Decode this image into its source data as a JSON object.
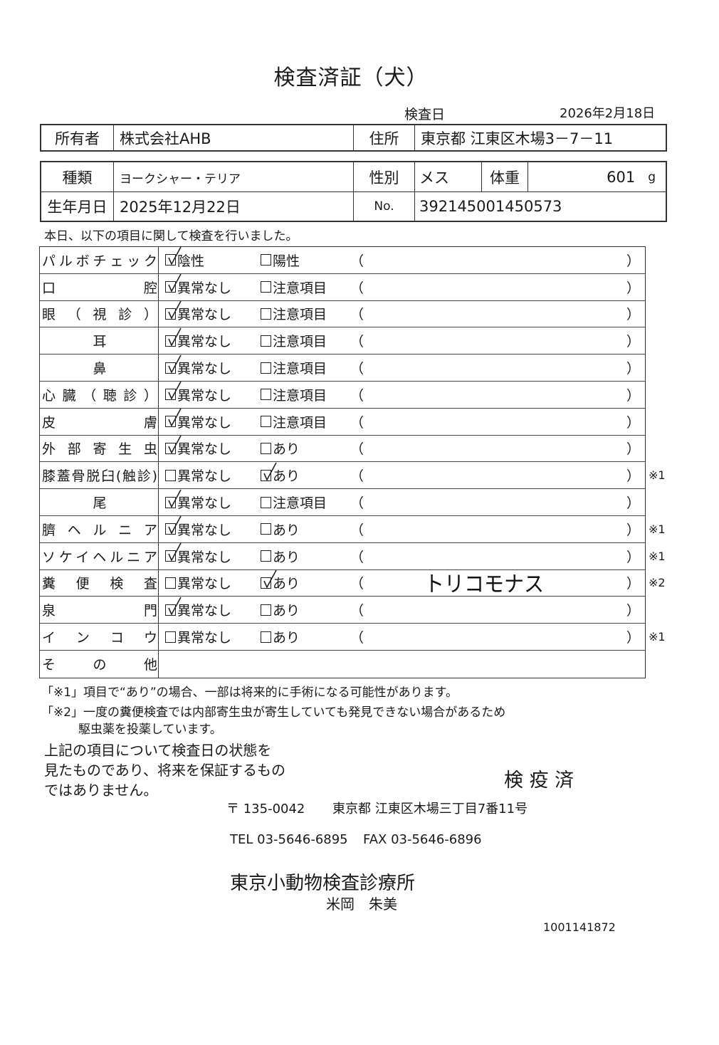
{
  "title": "検査済証（犬）",
  "exam_date_label": "検査日",
  "exam_date": "2026年2月18日",
  "owner": {
    "label": "所有者",
    "value": "株式会社AHB",
    "address_label": "住所",
    "address": "東京都 江東区木場3－7－11"
  },
  "animal": {
    "breed_label": "種類",
    "breed": "ヨークシャー・テリア",
    "sex_label": "性別",
    "sex": "メス",
    "weight_label": "体重",
    "weight": "601",
    "weight_unit": "g",
    "birth_label": "生年月日",
    "birth": "2025年12月22日",
    "no_label": "No.",
    "no": "392145001450573"
  },
  "intro": "本日、以下の項目に関して検査を行いました。",
  "rows": [
    {
      "label": "パルボチェック",
      "align": "just",
      "opt1": "陰性",
      "opt2": "陽性",
      "checked": 1,
      "comment": "",
      "note": ""
    },
    {
      "label": "口腔",
      "align": "just",
      "opt1": "異常なし",
      "opt2": "注意項目",
      "checked": 1,
      "comment": "",
      "note": ""
    },
    {
      "label": "眼（視診）",
      "align": "just",
      "opt1": "異常なし",
      "opt2": "注意項目",
      "checked": 1,
      "comment": "",
      "note": ""
    },
    {
      "label": "耳",
      "align": "center",
      "opt1": "異常なし",
      "opt2": "注意項目",
      "checked": 1,
      "comment": "",
      "note": ""
    },
    {
      "label": "鼻",
      "align": "center",
      "opt1": "異常なし",
      "opt2": "注意項目",
      "checked": 1,
      "comment": "",
      "note": ""
    },
    {
      "label": "心臓（聴診）",
      "align": "just",
      "opt1": "異常なし",
      "opt2": "注意項目",
      "checked": 1,
      "comment": "",
      "note": ""
    },
    {
      "label": "皮膚",
      "align": "just",
      "opt1": "異常なし",
      "opt2": "注意項目",
      "checked": 1,
      "comment": "",
      "note": ""
    },
    {
      "label": "外部寄生虫",
      "align": "just",
      "opt1": "異常なし",
      "opt2": "あり",
      "checked": 1,
      "comment": "",
      "note": ""
    },
    {
      "label": "膝蓋骨脱臼(触診)",
      "align": "just",
      "opt1": "異常なし",
      "opt2": "あり",
      "checked": 2,
      "comment": "",
      "note": "※1"
    },
    {
      "label": "尾",
      "align": "center",
      "opt1": "異常なし",
      "opt2": "注意項目",
      "checked": 1,
      "comment": "",
      "note": ""
    },
    {
      "label": "臍ヘルニア",
      "align": "just",
      "opt1": "異常なし",
      "opt2": "あり",
      "checked": 1,
      "comment": "",
      "note": "※1"
    },
    {
      "label": "ソケイヘルニア",
      "align": "just",
      "opt1": "異常なし",
      "opt2": "あり",
      "checked": 1,
      "comment": "",
      "note": "※1"
    },
    {
      "label": "糞便検査",
      "align": "just",
      "opt1": "異常なし",
      "opt2": "あり",
      "checked": 2,
      "comment": "トリコモナス",
      "note": "※2"
    },
    {
      "label": "泉門",
      "align": "just",
      "opt1": "異常なし",
      "opt2": "あり",
      "checked": 1,
      "comment": "",
      "note": ""
    },
    {
      "label": "インコウ",
      "align": "just",
      "opt1": "異常なし",
      "opt2": "あり",
      "checked": 0,
      "comment": "",
      "note": "※1"
    },
    {
      "label": "その他",
      "align": "just",
      "other": true
    }
  ],
  "paren_open": "（",
  "paren_close": "）",
  "footnotes": [
    "「※1」項目で“あり”の場合、一部は将来的に手術になる可能性があります。",
    "「※2」一度の糞便検査では内部寄生虫が寄生していても発見できない場合があるため",
    "駆虫薬を投薬しています。"
  ],
  "statement": [
    "上記の項目について検査日の状態を",
    "見たものであり、将来を保証するもの",
    "ではありません。"
  ],
  "stamp": "検 疫 済",
  "clinic": {
    "postal": "〒 135-0042",
    "address": "東京都 江東区木場三丁目7番11号",
    "tel": "TEL 03-5646-6895",
    "fax": "FAX 03-5646-6896",
    "name": "東京小動物検査診療所",
    "person": "米岡　朱美"
  },
  "serial": "1001141872"
}
